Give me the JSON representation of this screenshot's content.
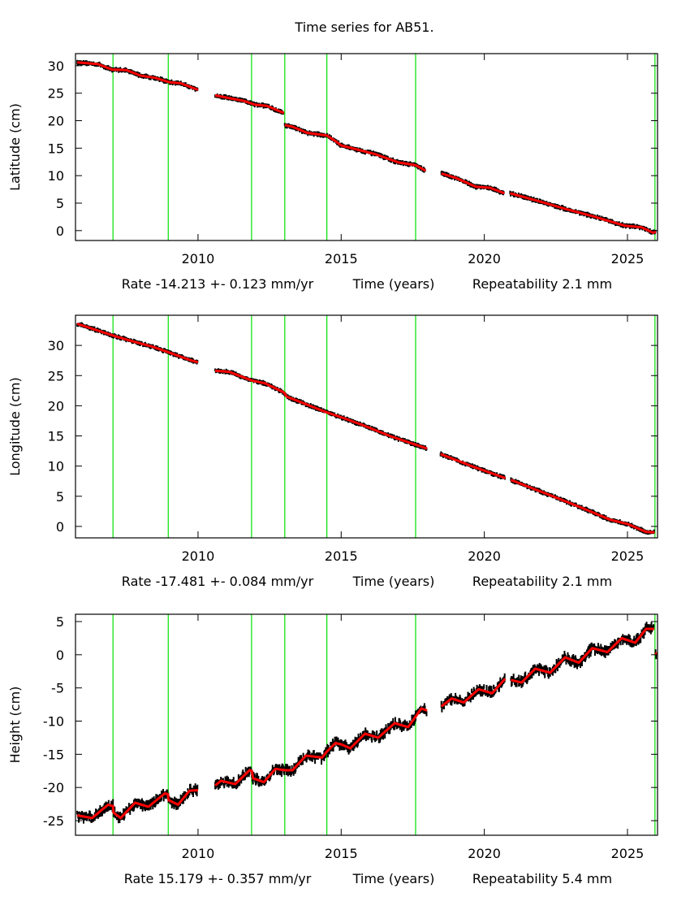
{
  "title": "Time series for AB51.",
  "colors": {
    "observations": "#000000",
    "model": "#ff0000",
    "event_lines": "#00e000",
    "axes": "#000000"
  },
  "chart_data": [
    {
      "type": "scatter",
      "ylabel": "Latitude (cm)",
      "xlabel": "Time (years)",
      "rate_text": "Rate -14.213 +- 0.123 mm/yr",
      "repeatability_text": "Repeatability 2.1 mm",
      "xlim": [
        2005.72,
        2026.05
      ],
      "ylim": [
        -1.8,
        32.2
      ],
      "xticks": [
        2010,
        2015,
        2020,
        2025
      ],
      "yticks": [
        0,
        5,
        10,
        15,
        20,
        25,
        30
      ],
      "noise": 0.35,
      "event_lines": [
        2007.03,
        2008.96,
        2011.87,
        2013.03,
        2014.5,
        2017.6,
        2025.96
      ],
      "segments": [
        [
          [
            2005.78,
            30.6
          ],
          [
            2006.5,
            30.3
          ],
          [
            2007.0,
            29.3
          ],
          [
            2007.5,
            29.2
          ],
          [
            2008.0,
            28.2
          ],
          [
            2008.5,
            27.8
          ],
          [
            2009.0,
            27.0
          ],
          [
            2009.4,
            26.8
          ],
          [
            2010.0,
            25.6
          ]
        ],
        [
          [
            2010.6,
            24.6
          ],
          [
            2011.2,
            24.0
          ],
          [
            2011.6,
            23.6
          ],
          [
            2012.0,
            22.9
          ],
          [
            2012.4,
            22.7
          ],
          [
            2013.0,
            21.4
          ]
        ],
        [
          [
            2013.03,
            19.2
          ],
          [
            2013.3,
            18.9
          ],
          [
            2013.8,
            17.8
          ],
          [
            2014.5,
            17.3
          ],
          [
            2014.8,
            16.3
          ],
          [
            2015.0,
            15.5
          ],
          [
            2016.2,
            13.9
          ],
          [
            2017.0,
            12.4
          ],
          [
            2017.6,
            11.9
          ],
          [
            2017.95,
            10.9
          ]
        ],
        [
          [
            2018.5,
            10.4
          ],
          [
            2019.0,
            9.6
          ],
          [
            2019.7,
            8.0
          ],
          [
            2020.2,
            7.8
          ],
          [
            2020.7,
            6.8
          ]
        ],
        [
          [
            2020.9,
            6.8
          ],
          [
            2021.8,
            5.5
          ],
          [
            2022.8,
            4.0
          ],
          [
            2023.8,
            2.6
          ],
          [
            2024.9,
            0.9
          ],
          [
            2025.5,
            0.6
          ],
          [
            2025.9,
            -0.4
          ],
          [
            2026.0,
            -0.2
          ]
        ]
      ]
    },
    {
      "type": "scatter",
      "ylabel": "Longitude (cm)",
      "xlabel": "Time (years)",
      "rate_text": "Rate -17.481 +- 0.084 mm/yr",
      "repeatability_text": "Repeatability 2.1 mm",
      "xlim": [
        2005.72,
        2026.05
      ],
      "ylim": [
        -1.9,
        35.0
      ],
      "xticks": [
        2010,
        2015,
        2020,
        2025
      ],
      "yticks": [
        0,
        5,
        10,
        15,
        20,
        25,
        30
      ],
      "noise": 0.3,
      "event_lines": [
        2007.03,
        2008.96,
        2011.87,
        2013.03,
        2014.5,
        2017.6,
        2025.96
      ],
      "segments": [
        [
          [
            2005.78,
            33.6
          ],
          [
            2007.05,
            31.6
          ],
          [
            2007.7,
            30.7
          ],
          [
            2008.4,
            29.8
          ],
          [
            2008.95,
            28.9
          ],
          [
            2009.7,
            27.6
          ],
          [
            2010.0,
            27.2
          ]
        ],
        [
          [
            2010.6,
            25.8
          ],
          [
            2011.1,
            25.6
          ],
          [
            2011.87,
            24.2
          ],
          [
            2012.35,
            23.7
          ],
          [
            2013.0,
            22.2
          ],
          [
            2013.1,
            21.5
          ],
          [
            2013.8,
            20.2
          ],
          [
            2014.5,
            18.9
          ],
          [
            2015.0,
            18.1
          ],
          [
            2015.75,
            16.8
          ],
          [
            2016.7,
            15.0
          ],
          [
            2017.62,
            13.5
          ],
          [
            2018.0,
            12.9
          ]
        ],
        [
          [
            2018.47,
            12.0
          ],
          [
            2019.5,
            10.1
          ],
          [
            2020.74,
            8.0
          ]
        ],
        [
          [
            2020.93,
            7.7
          ],
          [
            2021.8,
            6.1
          ],
          [
            2022.55,
            4.7
          ],
          [
            2023.5,
            2.9
          ],
          [
            2024.4,
            1.1
          ],
          [
            2025.0,
            0.4
          ],
          [
            2025.65,
            -0.9
          ],
          [
            2025.95,
            -1.0
          ]
        ]
      ]
    },
    {
      "type": "scatter",
      "ylabel": "Height (cm)",
      "xlabel": "Time (years)",
      "rate_text": "Rate 15.179 +- 0.357 mm/yr",
      "repeatability_text": "Repeatability 5.4 mm",
      "xlim": [
        2005.72,
        2026.05
      ],
      "ylim": [
        -27.2,
        6.1
      ],
      "xticks": [
        2010,
        2015,
        2020,
        2025
      ],
      "yticks": [
        5,
        0,
        -5,
        -10,
        -15,
        -20,
        -25
      ],
      "noise": 0.9,
      "event_lines": [
        2007.03,
        2008.96,
        2011.87,
        2013.03,
        2014.5,
        2017.6,
        2025.96
      ],
      "segments": [
        [
          [
            2005.78,
            -24.2
          ],
          [
            2006.3,
            -24.6
          ],
          [
            2006.86,
            -22.6
          ],
          [
            2007.03,
            -22.8
          ],
          [
            2007.05,
            -23.8
          ],
          [
            2007.3,
            -24.6
          ],
          [
            2007.8,
            -22.3
          ],
          [
            2008.27,
            -22.9
          ],
          [
            2008.84,
            -20.9
          ],
          [
            2008.95,
            -21.0
          ],
          [
            2008.97,
            -21.9
          ],
          [
            2009.3,
            -22.6
          ],
          [
            2009.7,
            -20.5
          ],
          [
            2010.0,
            -20.4
          ]
        ],
        [
          [
            2010.6,
            -19.7
          ],
          [
            2010.8,
            -19.0
          ],
          [
            2011.3,
            -19.5
          ],
          [
            2011.8,
            -17.4
          ],
          [
            2011.88,
            -17.5
          ],
          [
            2011.92,
            -18.6
          ],
          [
            2012.3,
            -19.2
          ],
          [
            2012.7,
            -17.2
          ],
          [
            2013.05,
            -17.4
          ],
          [
            2013.3,
            -17.4
          ],
          [
            2013.77,
            -15.2
          ],
          [
            2014.33,
            -15.5
          ],
          [
            2014.5,
            -14.6
          ],
          [
            2014.8,
            -13.3
          ],
          [
            2015.0,
            -13.5
          ],
          [
            2015.32,
            -14.1
          ],
          [
            2015.83,
            -11.9
          ],
          [
            2016.3,
            -12.5
          ],
          [
            2016.87,
            -10.3
          ],
          [
            2017.34,
            -10.9
          ],
          [
            2017.62,
            -9.2
          ],
          [
            2017.8,
            -8.1
          ],
          [
            2018.0,
            -8.4
          ]
        ],
        [
          [
            2018.5,
            -7.8
          ],
          [
            2018.86,
            -6.6
          ],
          [
            2019.28,
            -7.2
          ],
          [
            2019.8,
            -5.2
          ],
          [
            2020.27,
            -5.8
          ],
          [
            2020.73,
            -3.6
          ]
        ],
        [
          [
            2020.93,
            -3.8
          ],
          [
            2021.3,
            -4.2
          ],
          [
            2021.78,
            -2.1
          ],
          [
            2022.3,
            -2.7
          ],
          [
            2022.82,
            -0.4
          ],
          [
            2023.3,
            -1.2
          ],
          [
            2023.77,
            1.0
          ],
          [
            2024.3,
            0.4
          ],
          [
            2024.8,
            2.5
          ],
          [
            2025.27,
            1.8
          ],
          [
            2025.65,
            3.9
          ],
          [
            2025.93,
            3.9
          ]
        ],
        [
          [
            2025.98,
            0.3
          ],
          [
            2026.02,
            0.1
          ]
        ]
      ]
    }
  ]
}
